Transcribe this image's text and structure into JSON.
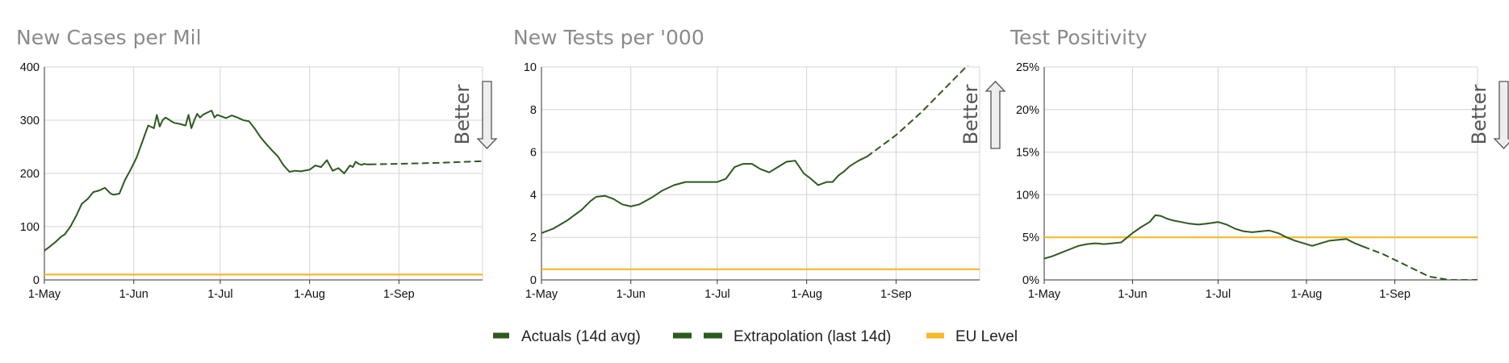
{
  "colors": {
    "actual": "#2d5a1e",
    "extrapolation": "#2d5a1e",
    "eu_level": "#f5b829",
    "grid": "#d4d4d4",
    "axis": "#333333",
    "title": "#8a8a8a",
    "arrow_fill": "#eeeeee",
    "arrow_stroke": "#555555"
  },
  "legend": {
    "actual_label": "Actuals (14d avg)",
    "extrapolation_label": "Extrapolation (last 14d)",
    "eu_label": "EU Level",
    "placement": "bottom-center"
  },
  "chart_data": [
    {
      "type": "line",
      "title": "New Cases per Mil",
      "xlabel": "",
      "ylabel": "",
      "x_axis": "date",
      "xlim": [
        "2020-05-01",
        "2020-09-30"
      ],
      "x_ticks": [
        {
          "date": "2020-05-01",
          "label": "1-May"
        },
        {
          "date": "2020-06-01",
          "label": "1-Jun"
        },
        {
          "date": "2020-07-01",
          "label": "1-Jul"
        },
        {
          "date": "2020-08-01",
          "label": "1-Aug"
        },
        {
          "date": "2020-09-01",
          "label": "1-Sep"
        }
      ],
      "ylim": [
        0,
        400
      ],
      "y_ticks": [
        0,
        100,
        200,
        300,
        400
      ],
      "y_format": "number",
      "grid": true,
      "better_direction": "down",
      "better_label": "Better",
      "eu_level": 10,
      "series": [
        {
          "role": "actual",
          "x": [
            "2020-05-01",
            "2020-05-03",
            "2020-05-05",
            "2020-05-07",
            "2020-05-08",
            "2020-05-10",
            "2020-05-12",
            "2020-05-14",
            "2020-05-16",
            "2020-05-18",
            "2020-05-20",
            "2020-05-22",
            "2020-05-24",
            "2020-05-25",
            "2020-05-27",
            "2020-05-29",
            "2020-05-31",
            "2020-06-02",
            "2020-06-04",
            "2020-06-06",
            "2020-06-08",
            "2020-06-09",
            "2020-06-10",
            "2020-06-11",
            "2020-06-12",
            "2020-06-13",
            "2020-06-14",
            "2020-06-15",
            "2020-06-17",
            "2020-06-19",
            "2020-06-20",
            "2020-06-21",
            "2020-06-22",
            "2020-06-23",
            "2020-06-24",
            "2020-06-25",
            "2020-06-26",
            "2020-06-28",
            "2020-06-29",
            "2020-06-30",
            "2020-07-01",
            "2020-07-03",
            "2020-07-05",
            "2020-07-07",
            "2020-07-09",
            "2020-07-11",
            "2020-07-13",
            "2020-07-15",
            "2020-07-17",
            "2020-07-19",
            "2020-07-21",
            "2020-07-23",
            "2020-07-25",
            "2020-07-27",
            "2020-07-29",
            "2020-07-31",
            "2020-08-01",
            "2020-08-03",
            "2020-08-05",
            "2020-08-07",
            "2020-08-09",
            "2020-08-11",
            "2020-08-13",
            "2020-08-15",
            "2020-08-16",
            "2020-08-17",
            "2020-08-18",
            "2020-08-19",
            "2020-08-20",
            "2020-08-21",
            "2020-08-22"
          ],
          "values": [
            55,
            63,
            72,
            82,
            85,
            100,
            120,
            143,
            152,
            165,
            168,
            173,
            162,
            160,
            162,
            188,
            208,
            230,
            260,
            290,
            285,
            310,
            288,
            300,
            305,
            302,
            298,
            295,
            293,
            290,
            310,
            285,
            300,
            312,
            305,
            310,
            313,
            318,
            305,
            310,
            308,
            304,
            309,
            305,
            300,
            298,
            284,
            268,
            255,
            243,
            232,
            215,
            203,
            205,
            204,
            206,
            207,
            215,
            212,
            225,
            205,
            210,
            200,
            215,
            212,
            222,
            218,
            216,
            218,
            217,
            217
          ]
        },
        {
          "role": "extrapolation",
          "x": [
            "2020-08-22",
            "2020-09-01",
            "2020-09-15",
            "2020-09-30"
          ],
          "values": [
            217,
            218,
            220,
            223
          ]
        }
      ]
    },
    {
      "type": "line",
      "title": "New Tests per '000",
      "xlabel": "",
      "ylabel": "",
      "x_axis": "date",
      "xlim": [
        "2020-05-01",
        "2020-09-30"
      ],
      "x_ticks": [
        {
          "date": "2020-05-01",
          "label": "1-May"
        },
        {
          "date": "2020-06-01",
          "label": "1-Jun"
        },
        {
          "date": "2020-07-01",
          "label": "1-Jul"
        },
        {
          "date": "2020-08-01",
          "label": "1-Aug"
        },
        {
          "date": "2020-09-01",
          "label": "1-Sep"
        }
      ],
      "ylim": [
        0,
        10
      ],
      "y_ticks": [
        0,
        2,
        4,
        6,
        8,
        10
      ],
      "y_format": "number",
      "grid": true,
      "better_direction": "up",
      "better_label": "Better",
      "eu_level": 0.5,
      "series": [
        {
          "role": "actual",
          "x": [
            "2020-05-01",
            "2020-05-05",
            "2020-05-10",
            "2020-05-15",
            "2020-05-18",
            "2020-05-20",
            "2020-05-23",
            "2020-05-26",
            "2020-05-29",
            "2020-06-01",
            "2020-06-04",
            "2020-06-08",
            "2020-06-12",
            "2020-06-16",
            "2020-06-20",
            "2020-06-24",
            "2020-06-28",
            "2020-07-01",
            "2020-07-04",
            "2020-07-07",
            "2020-07-10",
            "2020-07-13",
            "2020-07-16",
            "2020-07-19",
            "2020-07-22",
            "2020-07-25",
            "2020-07-28",
            "2020-07-31",
            "2020-08-02",
            "2020-08-05",
            "2020-08-08",
            "2020-08-10",
            "2020-08-12",
            "2020-08-14",
            "2020-08-16",
            "2020-08-19",
            "2020-08-22"
          ],
          "values": [
            2.2,
            2.4,
            2.8,
            3.3,
            3.7,
            3.9,
            3.95,
            3.8,
            3.55,
            3.45,
            3.55,
            3.85,
            4.2,
            4.45,
            4.6,
            4.6,
            4.6,
            4.6,
            4.75,
            5.3,
            5.45,
            5.45,
            5.2,
            5.05,
            5.3,
            5.55,
            5.6,
            5.0,
            4.8,
            4.45,
            4.6,
            4.6,
            4.9,
            5.1,
            5.35,
            5.6,
            5.8
          ]
        },
        {
          "role": "extrapolation",
          "x": [
            "2020-08-22",
            "2020-09-01",
            "2020-09-10",
            "2020-09-18",
            "2020-09-26"
          ],
          "values": [
            5.8,
            6.8,
            7.9,
            9.0,
            10.1
          ]
        }
      ]
    },
    {
      "type": "line",
      "title": "Test Positivity",
      "xlabel": "",
      "ylabel": "",
      "x_axis": "date",
      "xlim": [
        "2020-05-01",
        "2020-09-30"
      ],
      "x_ticks": [
        {
          "date": "2020-05-01",
          "label": "1-May"
        },
        {
          "date": "2020-06-01",
          "label": "1-Jun"
        },
        {
          "date": "2020-07-01",
          "label": "1-Jul"
        },
        {
          "date": "2020-08-01",
          "label": "1-Aug"
        },
        {
          "date": "2020-09-01",
          "label": "1-Sep"
        }
      ],
      "ylim": [
        0,
        25
      ],
      "y_ticks": [
        0,
        5,
        10,
        15,
        20,
        25
      ],
      "y_format": "percent",
      "grid": true,
      "better_direction": "down",
      "better_label": "Better",
      "eu_level": 5,
      "series": [
        {
          "role": "actual",
          "x": [
            "2020-05-01",
            "2020-05-04",
            "2020-05-07",
            "2020-05-10",
            "2020-05-13",
            "2020-05-16",
            "2020-05-19",
            "2020-05-22",
            "2020-05-25",
            "2020-05-28",
            "2020-06-01",
            "2020-06-04",
            "2020-06-07",
            "2020-06-09",
            "2020-06-11",
            "2020-06-13",
            "2020-06-15",
            "2020-06-18",
            "2020-06-21",
            "2020-06-24",
            "2020-06-27",
            "2020-07-01",
            "2020-07-04",
            "2020-07-07",
            "2020-07-10",
            "2020-07-13",
            "2020-07-16",
            "2020-07-19",
            "2020-07-22",
            "2020-07-25",
            "2020-07-28",
            "2020-07-31",
            "2020-08-03",
            "2020-08-06",
            "2020-08-09",
            "2020-08-12",
            "2020-08-15",
            "2020-08-18",
            "2020-08-21"
          ],
          "values": [
            2.5,
            2.8,
            3.2,
            3.6,
            4.0,
            4.2,
            4.3,
            4.2,
            4.3,
            4.4,
            5.5,
            6.2,
            6.8,
            7.6,
            7.5,
            7.2,
            7.0,
            6.8,
            6.6,
            6.5,
            6.6,
            6.8,
            6.5,
            6.0,
            5.7,
            5.6,
            5.7,
            5.8,
            5.5,
            5.0,
            4.6,
            4.3,
            4.0,
            4.3,
            4.6,
            4.7,
            4.8,
            4.3,
            3.9
          ]
        },
        {
          "role": "extrapolation",
          "x": [
            "2020-08-21",
            "2020-08-28",
            "2020-09-05",
            "2020-09-13",
            "2020-09-20",
            "2020-09-30"
          ],
          "values": [
            3.9,
            3.0,
            1.7,
            0.4,
            0.0,
            0.0
          ]
        }
      ]
    }
  ]
}
